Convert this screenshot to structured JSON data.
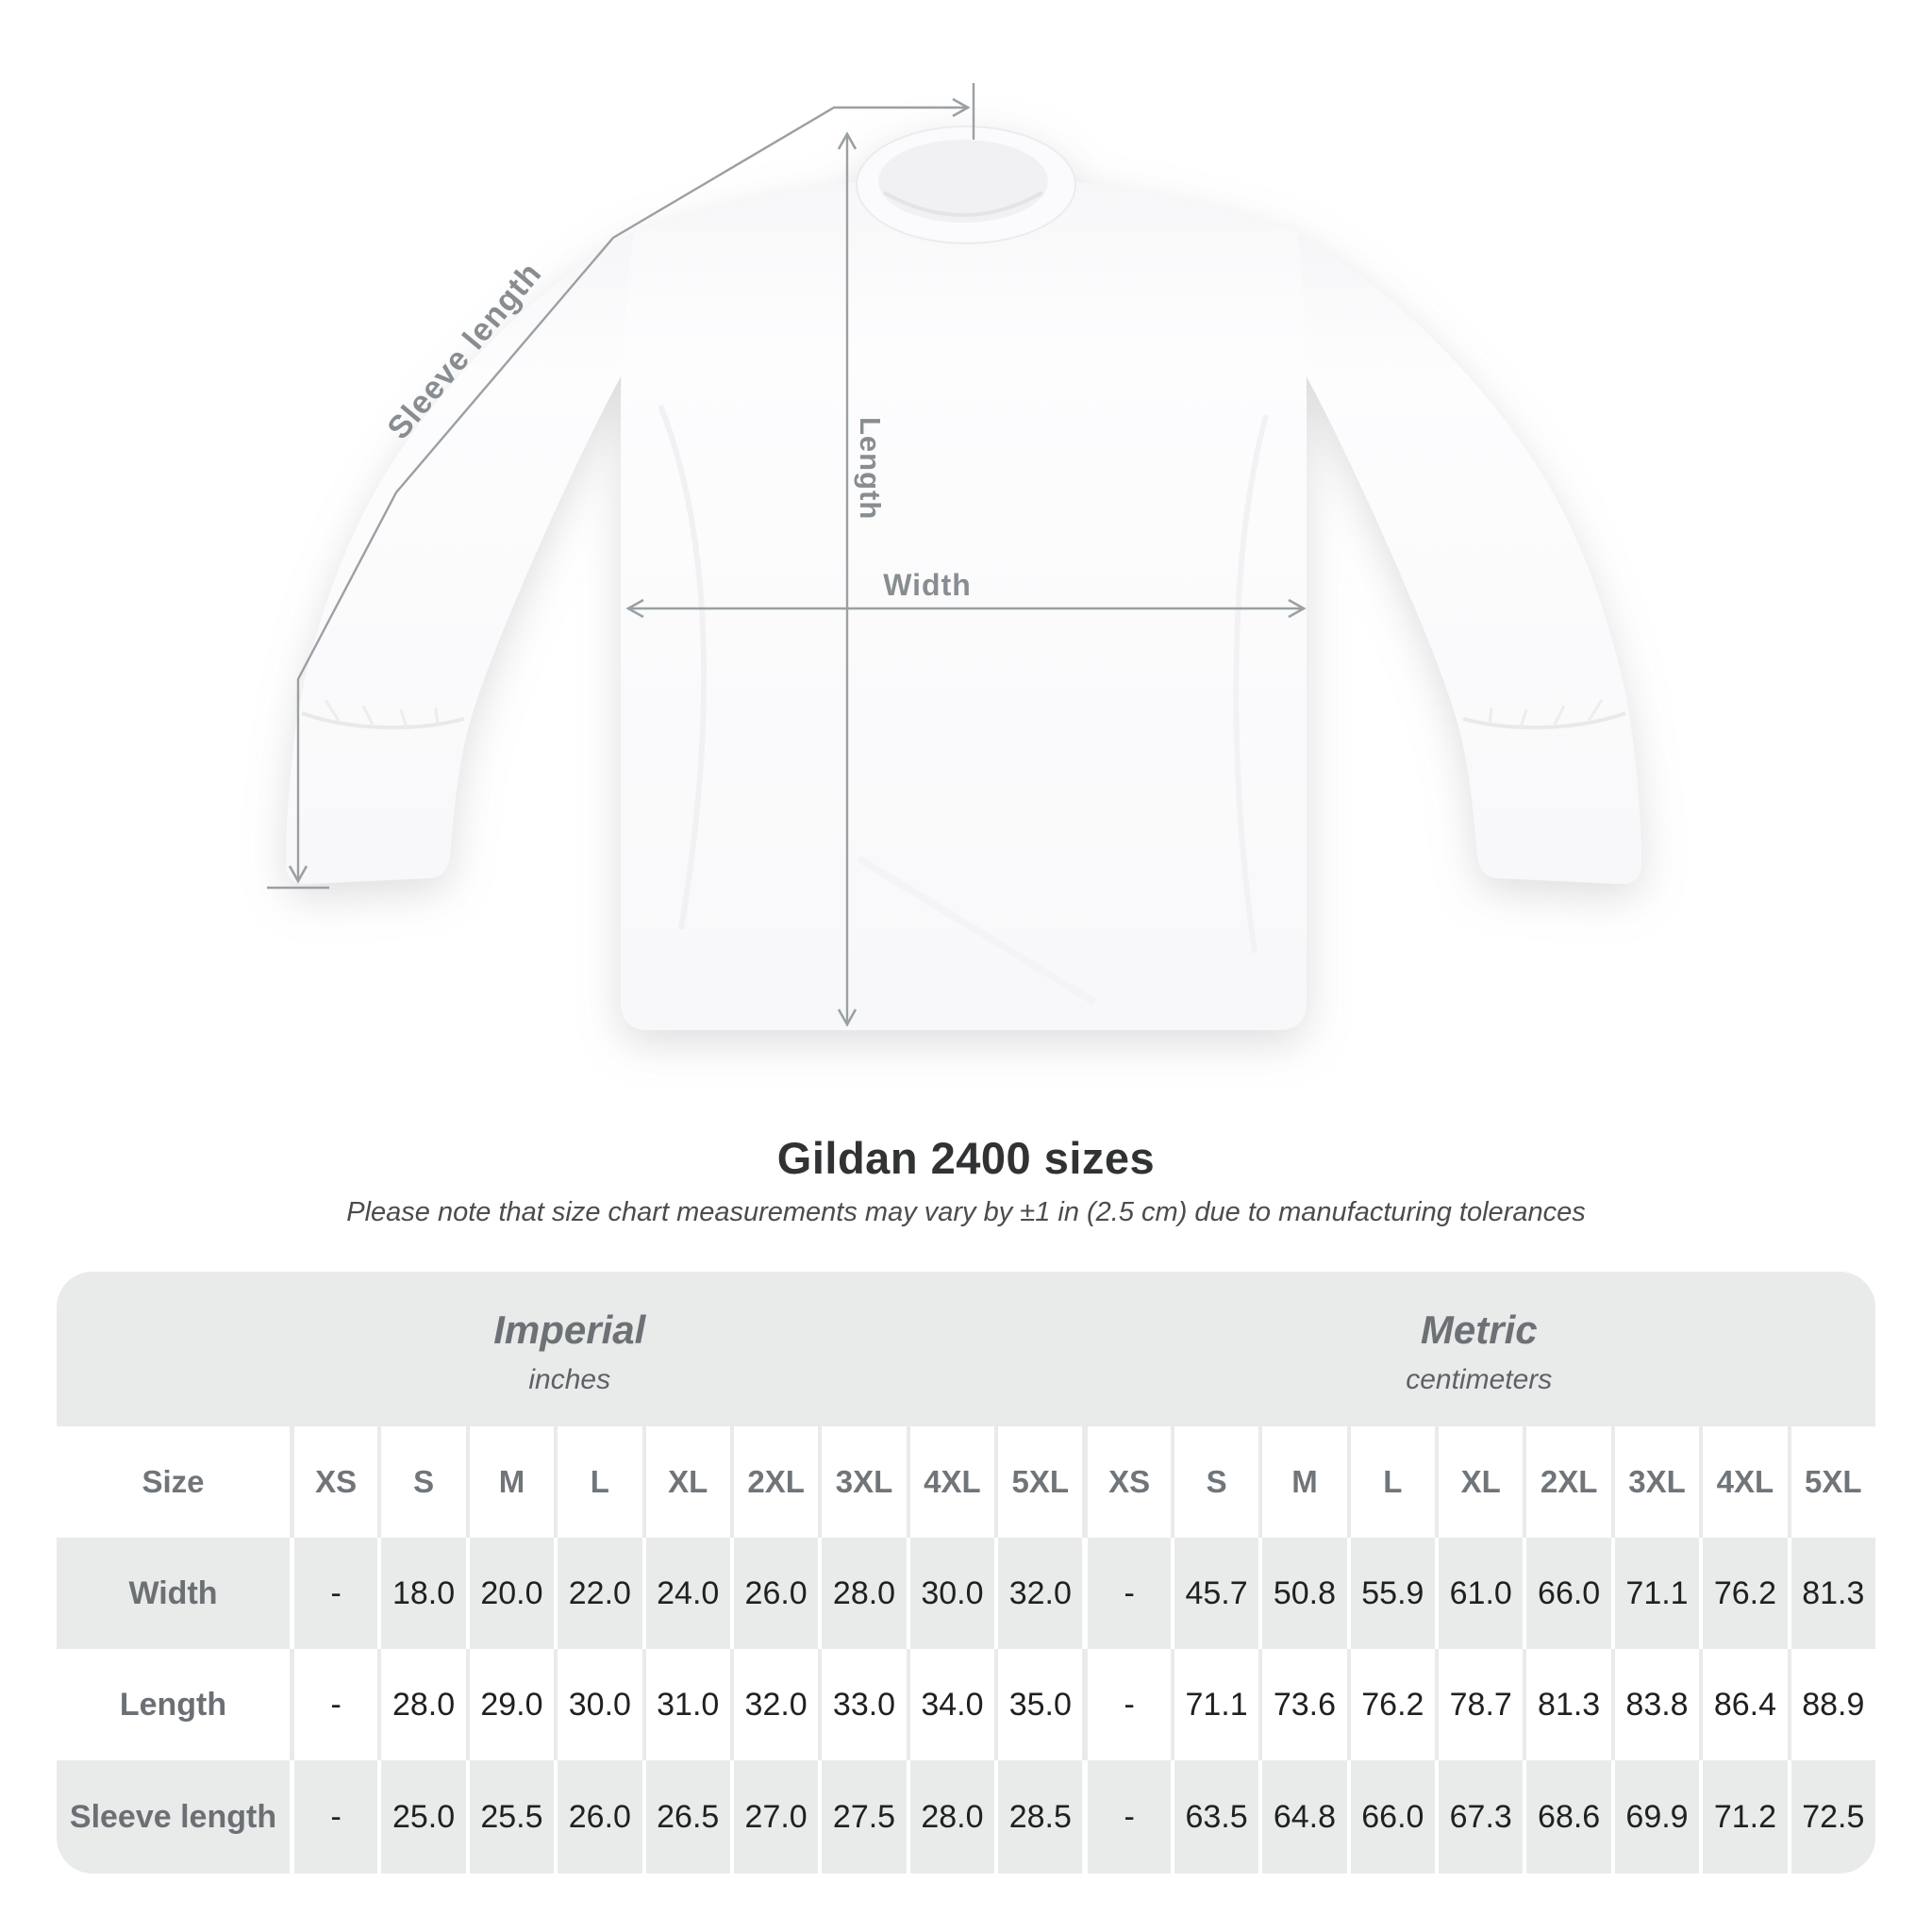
{
  "diagram": {
    "sleeve_length_label": "Sleeve length",
    "length_label": "Length",
    "width_label": "Width"
  },
  "heading": {
    "title": "Gildan 2400 sizes",
    "subtitle": "Please note that size chart measurements may vary by ±1 in (2.5 cm) due to manufacturing tolerances"
  },
  "chart_data": {
    "type": "table",
    "title": "Gildan 2400 sizes",
    "sections": [
      {
        "name": "Imperial",
        "unit": "inches"
      },
      {
        "name": "Metric",
        "unit": "centimeters"
      }
    ],
    "corner_header": "Size",
    "size_columns": [
      "XS",
      "S",
      "M",
      "L",
      "XL",
      "2XL",
      "3XL",
      "4XL",
      "5XL"
    ],
    "rows": [
      {
        "label": "Width",
        "imperial": [
          "-",
          "18.0",
          "20.0",
          "22.0",
          "24.0",
          "26.0",
          "28.0",
          "30.0",
          "32.0"
        ],
        "metric": [
          "-",
          "45.7",
          "50.8",
          "55.9",
          "61.0",
          "66.0",
          "71.1",
          "76.2",
          "81.3"
        ]
      },
      {
        "label": "Length",
        "imperial": [
          "-",
          "28.0",
          "29.0",
          "30.0",
          "31.0",
          "32.0",
          "33.0",
          "34.0",
          "35.0"
        ],
        "metric": [
          "-",
          "71.1",
          "73.6",
          "76.2",
          "78.7",
          "81.3",
          "83.8",
          "86.4",
          "88.9"
        ]
      },
      {
        "label": "Sleeve length",
        "imperial": [
          "-",
          "25.0",
          "25.5",
          "26.0",
          "26.5",
          "27.0",
          "27.5",
          "28.0",
          "28.5"
        ],
        "metric": [
          "-",
          "63.5",
          "64.8",
          "66.0",
          "67.3",
          "68.6",
          "69.9",
          "71.2",
          "72.5"
        ]
      }
    ]
  },
  "colors": {
    "table_background": "#e9eaea",
    "row_white": "#ffffff",
    "header_text": "#70757a",
    "row_label_text": "#6b7075",
    "value_text": "#1f2022",
    "annotation_line": "#9aa0a4",
    "annotation_label": "#878d91",
    "title_text": "#303233",
    "subtitle_text": "#4a4c4e",
    "shirt_fill": "#fbfbfd"
  }
}
